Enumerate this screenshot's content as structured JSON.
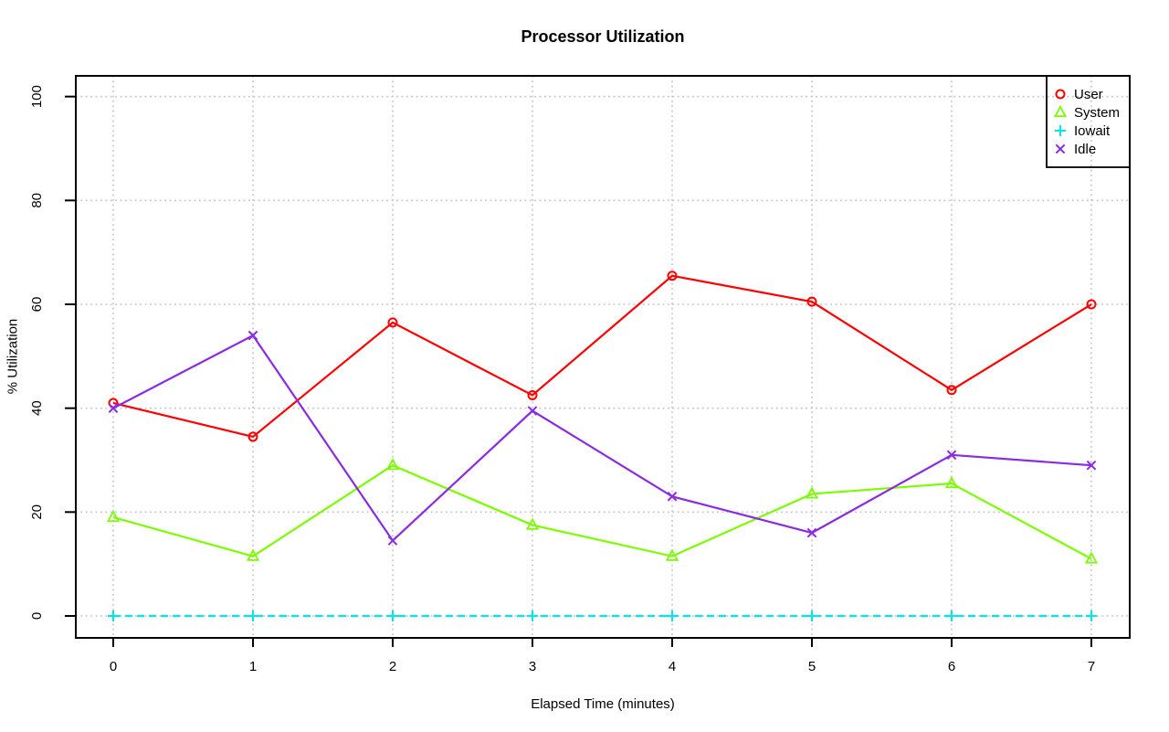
{
  "chart_data": {
    "type": "line",
    "title": "Processor Utilization",
    "xlabel": "Elapsed Time (minutes)",
    "ylabel": "% Utilization",
    "x": [
      0,
      1,
      2,
      3,
      4,
      5,
      6,
      7
    ],
    "xlim": [
      0,
      7
    ],
    "ylim": [
      0,
      100
    ],
    "xticks": [
      0,
      1,
      2,
      3,
      4,
      5,
      6,
      7
    ],
    "yticks": [
      0,
      20,
      40,
      60,
      80,
      100
    ],
    "grid": "dotted",
    "grid_color": "#c4c4c4",
    "legend_position": "top-right",
    "series": [
      {
        "name": "User",
        "color": "#ff0000",
        "marker": "circle",
        "linestyle": "solid",
        "values": [
          41,
          34.5,
          56.5,
          42.5,
          65.5,
          60.5,
          43.5,
          60
        ]
      },
      {
        "name": "System",
        "color": "#7cfc00",
        "marker": "triangle",
        "linestyle": "solid",
        "values": [
          19,
          11.5,
          29,
          17.5,
          11.5,
          23.5,
          25.5,
          11
        ]
      },
      {
        "name": "Iowait",
        "color": "#00e5ee",
        "marker": "plus",
        "linestyle": "dashed",
        "values": [
          0,
          0,
          0,
          0,
          0,
          0,
          0,
          0
        ]
      },
      {
        "name": "Idle",
        "color": "#8a2be2",
        "marker": "x",
        "linestyle": "solid",
        "values": [
          40,
          54,
          14.5,
          39.5,
          23,
          16,
          31,
          29
        ]
      }
    ]
  }
}
